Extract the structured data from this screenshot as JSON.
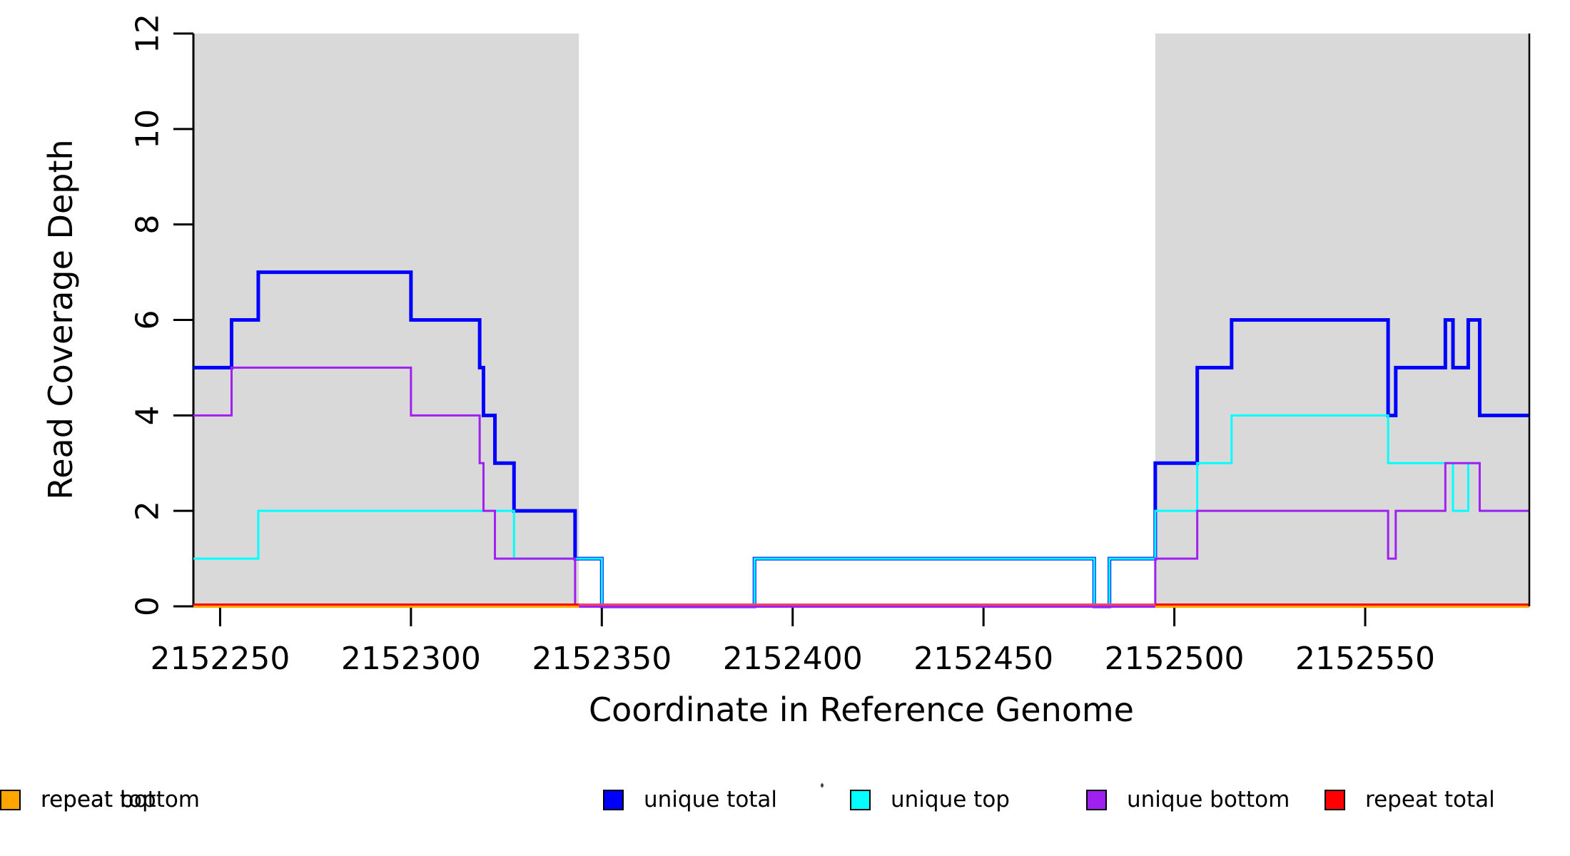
{
  "chart_data": {
    "type": "line",
    "subtype": "step",
    "title": "",
    "xlabel": "Coordinate in Reference Genome",
    "ylabel": "Read Coverage Depth",
    "x_range": [
      2152243,
      2152593
    ],
    "y_range": [
      0,
      12
    ],
    "x_ticks": [
      2152250,
      2152300,
      2152350,
      2152400,
      2152450,
      2152500,
      2152550
    ],
    "y_ticks": [
      0,
      2,
      4,
      6,
      8,
      10,
      12
    ],
    "grid": false,
    "legend_position": "bottom",
    "shaded_regions": [
      {
        "from": 2152243,
        "to": 2152344,
        "color": "#D9D9D9"
      },
      {
        "from": 2152495,
        "to": 2152593,
        "color": "#D9D9D9"
      }
    ],
    "series": [
      {
        "name": "unique total",
        "color": "#0000FF",
        "width": 5,
        "steps": [
          [
            2152243,
            5
          ],
          [
            2152253,
            6
          ],
          [
            2152260,
            7
          ],
          [
            2152300,
            6
          ],
          [
            2152318,
            5
          ],
          [
            2152319,
            4
          ],
          [
            2152322,
            3
          ],
          [
            2152327,
            2
          ],
          [
            2152343,
            1
          ],
          [
            2152350,
            0
          ],
          [
            2152390,
            1
          ],
          [
            2152479,
            0
          ],
          [
            2152483,
            1
          ],
          [
            2152495,
            3
          ],
          [
            2152506,
            5
          ],
          [
            2152515,
            6
          ],
          [
            2152556,
            4
          ],
          [
            2152558,
            5
          ],
          [
            2152571,
            6
          ],
          [
            2152573,
            5
          ],
          [
            2152577,
            6
          ],
          [
            2152580,
            4
          ]
        ]
      },
      {
        "name": "unique top",
        "color": "#00FFFF",
        "width": 3,
        "steps": [
          [
            2152243,
            1
          ],
          [
            2152260,
            2
          ],
          [
            2152327,
            1
          ],
          [
            2152350,
            0
          ],
          [
            2152390,
            1
          ],
          [
            2152479,
            0
          ],
          [
            2152483,
            1
          ],
          [
            2152495,
            2
          ],
          [
            2152506,
            3
          ],
          [
            2152515,
            4
          ],
          [
            2152556,
            3
          ],
          [
            2152573,
            2
          ],
          [
            2152577,
            3
          ],
          [
            2152580,
            2
          ]
        ]
      },
      {
        "name": "unique bottom",
        "color": "#A020F0",
        "width": 3,
        "steps": [
          [
            2152243,
            4
          ],
          [
            2152253,
            5
          ],
          [
            2152300,
            4
          ],
          [
            2152318,
            3
          ],
          [
            2152319,
            2
          ],
          [
            2152322,
            1
          ],
          [
            2152343,
            0
          ],
          [
            2152495,
            1
          ],
          [
            2152506,
            2
          ],
          [
            2152556,
            1
          ],
          [
            2152558,
            2
          ],
          [
            2152571,
            3
          ],
          [
            2152580,
            2
          ]
        ]
      },
      {
        "name": "repeat total",
        "color": "#FF0000",
        "width": 4,
        "steps": [
          [
            2152243,
            0
          ]
        ]
      },
      {
        "name": "repeat top",
        "color": "#FFFF00",
        "width": 2.5,
        "steps": [
          [
            2152243,
            0
          ]
        ]
      },
      {
        "name": "repeat bottom",
        "color": "#FFA500",
        "width": 3.5,
        "steps": [
          [
            2152243,
            0
          ]
        ]
      }
    ],
    "baseline_detail": [
      {
        "from": 2152243,
        "to": 2152344,
        "top": "#FF0000",
        "main": "#FFA500"
      },
      {
        "from": 2152344,
        "to": 2152495,
        "top": "#EE4466",
        "main": "#A020F0"
      },
      {
        "from": 2152495,
        "to": 2152593,
        "top": "#FF0000",
        "main": "#FFA500"
      }
    ],
    "legend": {
      "entries": [
        {
          "label": "unique total",
          "color": "#0000FF"
        },
        {
          "label": "unique top",
          "color": "#00FFFF"
        },
        {
          "label": "unique bottom",
          "color": "#A020F0"
        },
        {
          "label": "repeat total",
          "color": "#FF0000"
        },
        {
          "label": "repeat top",
          "color": "#FFFF00"
        },
        {
          "label": "repeat bottom",
          "color": "#FFA500"
        }
      ]
    }
  }
}
